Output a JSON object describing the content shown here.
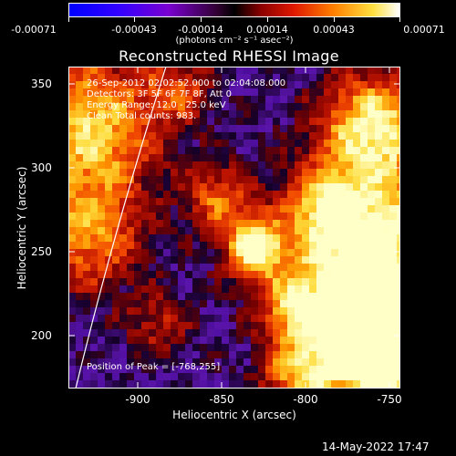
{
  "colorbar": {
    "tick_labels": [
      "-0.00071",
      "-0.00043",
      "-0.00014",
      "0.00014",
      "0.00043",
      "0.00071"
    ],
    "units": "(photons cm⁻² s⁻¹ asec⁻²)",
    "colors": [
      "#0000ff",
      "#3a00ff",
      "#9b00c8",
      "#000000",
      "#aa0000",
      "#ff3300",
      "#ff9900",
      "#ffff66",
      "#ffffff"
    ]
  },
  "chart_data": {
    "type": "heatmap",
    "title": "Reconstructed RHESSI Image",
    "xlabel": "Heliocentric X (arcsec)",
    "ylabel": "Heliocentric Y (arcsec)",
    "xlim": [
      -945,
      -747
    ],
    "ylim": [
      172,
      362
    ],
    "x_ticks": [
      "-900",
      "-850",
      "-800",
      "-750"
    ],
    "y_ticks": [
      "200",
      "250",
      "300",
      "350"
    ],
    "peak_position": [
      -768,
      255
    ]
  },
  "info_lines": [
    "26-Sep-2012 02:02:52.000 to 02:04:08.000",
    "Detectors: 3F 5F 6F 7F 8F, Att 0",
    "Energy Range: 12.0 - 25.0 keV",
    "Clean     Total counts: 983."
  ],
  "peak_label": "Position of Peak = [-768,255]",
  "timestamp": "14-May-2022 17:47"
}
